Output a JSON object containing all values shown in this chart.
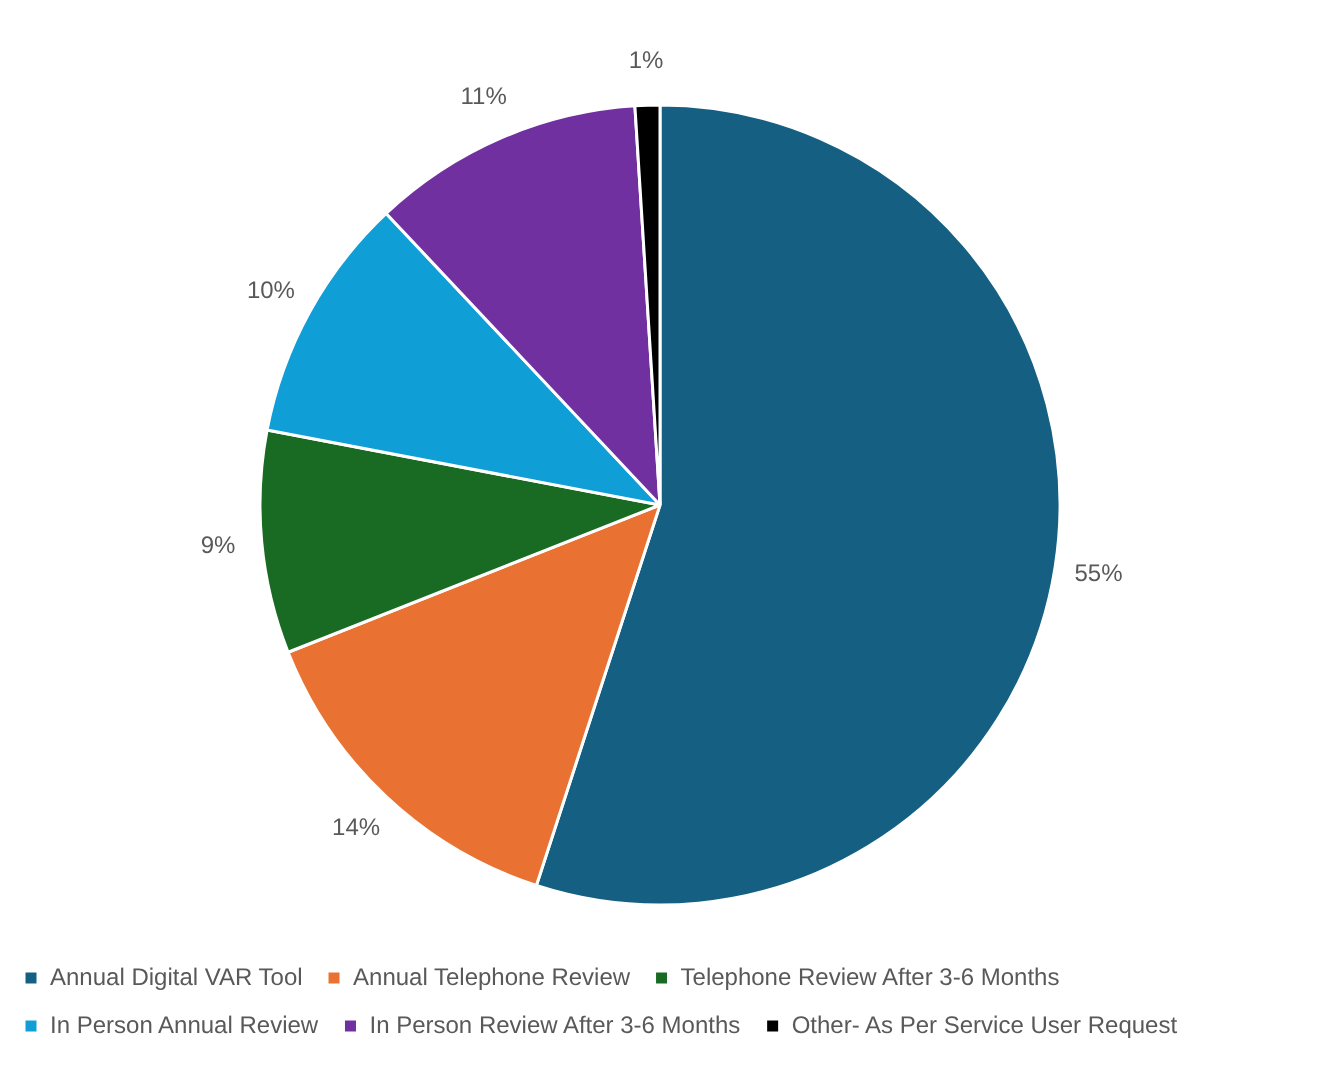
{
  "chart_data": {
    "type": "pie",
    "categories": [
      "Annual Digital VAR Tool",
      "Annual Telephone Review",
      "Telephone Review After 3-6 Months",
      "In Person Annual Review",
      "In Person Review After 3-6 Months",
      "Other- As Per Service User Request"
    ],
    "values": [
      55,
      14,
      9,
      10,
      11,
      1
    ],
    "colors": [
      "#156082",
      "#e97132",
      "#196b24",
      "#0f9ed5",
      "#7030a0",
      "#000000"
    ],
    "value_labels": [
      "55%",
      "14%",
      "9%",
      "10%",
      "11%",
      "1%"
    ],
    "legend": "bottom"
  }
}
